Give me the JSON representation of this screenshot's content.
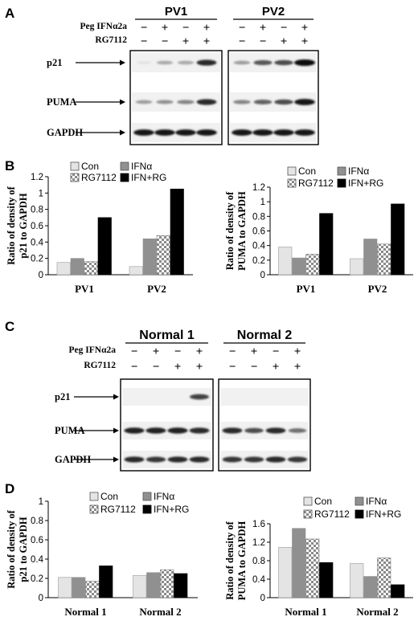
{
  "panels": {
    "A": "A",
    "B": "B",
    "C": "C",
    "D": "D"
  },
  "blot_A": {
    "groups": [
      "PV1",
      "PV2"
    ],
    "treatments": [
      {
        "label": "Peg IFNα2a",
        "signs": [
          "−",
          "+",
          "−",
          "+"
        ]
      },
      {
        "label": "RG7112",
        "signs": [
          "−",
          "−",
          "+",
          "+"
        ]
      }
    ],
    "proteins": [
      "p21",
      "PUMA",
      "GAPDH"
    ],
    "band_intensity": {
      "p21": [
        [
          0.05,
          0.3,
          0.3,
          0.85
        ],
        [
          0.35,
          0.65,
          0.7,
          1.0
        ]
      ],
      "PUMA": [
        [
          0.35,
          0.4,
          0.45,
          0.85
        ],
        [
          0.45,
          0.6,
          0.7,
          0.95
        ]
      ],
      "GAPDH": [
        [
          0.95,
          0.95,
          0.95,
          0.95
        ],
        [
          0.95,
          0.95,
          0.95,
          0.95
        ]
      ]
    }
  },
  "blot_C": {
    "groups": [
      "Normal 1",
      "Normal 2"
    ],
    "treatments": [
      {
        "label": "Peg IFNα2a",
        "signs": [
          "−",
          "+",
          "−",
          "+"
        ]
      },
      {
        "label": "RG7112",
        "signs": [
          "−",
          "−",
          "+",
          "+"
        ]
      }
    ],
    "proteins": [
      "p21",
      "PUMA",
      "GAPDH"
    ],
    "band_intensity": {
      "p21": [
        [
          0.0,
          0.0,
          0.0,
          0.75
        ],
        [
          0.0,
          0.0,
          0.0,
          0.0
        ]
      ],
      "PUMA": [
        [
          0.9,
          0.9,
          0.9,
          0.85
        ],
        [
          0.85,
          0.7,
          0.85,
          0.55
        ]
      ],
      "GAPDH": [
        [
          0.85,
          0.8,
          0.85,
          0.85
        ],
        [
          0.8,
          0.8,
          0.85,
          0.8
        ]
      ]
    }
  },
  "legend_names": [
    "Con",
    "IFNα",
    "RG7112",
    "IFN+RG"
  ],
  "chart_data": [
    {
      "type": "bar",
      "id": "B-left",
      "categories": [
        "PV1",
        "PV2"
      ],
      "ylabel": [
        "Ratio of density of",
        "p21 to GAPDH"
      ],
      "ylim": [
        0,
        1.2
      ],
      "yticks": [
        "0",
        "0.2",
        "0.4",
        "0.6",
        "0.8",
        "1",
        "1.2"
      ],
      "series": [
        {
          "name": "Con",
          "values": [
            0.15,
            0.1
          ]
        },
        {
          "name": "IFNα",
          "values": [
            0.2,
            0.44
          ]
        },
        {
          "name": "RG7112",
          "values": [
            0.16,
            0.48
          ]
        },
        {
          "name": "IFN+RG",
          "values": [
            0.7,
            1.05
          ]
        }
      ]
    },
    {
      "type": "bar",
      "id": "B-right",
      "categories": [
        "PV1",
        "PV2"
      ],
      "ylabel": [
        "Ratio of density of",
        "PUMA to GAPDH"
      ],
      "ylim": [
        0,
        1.2
      ],
      "yticks": [
        "0",
        "0.2",
        "0.4",
        "0.6",
        "0.8",
        "1",
        "1.2"
      ],
      "series": [
        {
          "name": "Con",
          "values": [
            0.38,
            0.22
          ]
        },
        {
          "name": "IFNα",
          "values": [
            0.23,
            0.49
          ]
        },
        {
          "name": "RG7112",
          "values": [
            0.28,
            0.42
          ]
        },
        {
          "name": "IFN+RG",
          "values": [
            0.84,
            0.97
          ]
        }
      ]
    },
    {
      "type": "bar",
      "id": "D-left",
      "categories": [
        "Normal 1",
        "Normal 2"
      ],
      "ylabel": [
        "Ratio of density of",
        "p21 to GAPDH"
      ],
      "ylim": [
        0,
        1.0
      ],
      "yticks": [
        "0",
        "0.2",
        "0.4",
        "0.6",
        "0.8",
        "1"
      ],
      "series": [
        {
          "name": "Con",
          "values": [
            0.21,
            0.23
          ]
        },
        {
          "name": "IFNα",
          "values": [
            0.21,
            0.26
          ]
        },
        {
          "name": "RG7112",
          "values": [
            0.17,
            0.29
          ]
        },
        {
          "name": "IFN+RG",
          "values": [
            0.33,
            0.25
          ]
        }
      ]
    },
    {
      "type": "bar",
      "id": "D-right",
      "categories": [
        "Normal 1",
        "Normal 2"
      ],
      "ylabel": [
        "Ratio of density of",
        "PUMA to GAPDH"
      ],
      "ylim": [
        0,
        1.6
      ],
      "yticks": [
        "0",
        "0.4",
        "0.8",
        "1.2",
        "1.6"
      ],
      "series": [
        {
          "name": "Con",
          "values": [
            1.09,
            0.74
          ]
        },
        {
          "name": "IFNα",
          "values": [
            1.5,
            0.46
          ]
        },
        {
          "name": "RG7112",
          "values": [
            1.27,
            0.86
          ]
        },
        {
          "name": "IFN+RG",
          "values": [
            0.76,
            0.28
          ]
        }
      ]
    }
  ]
}
